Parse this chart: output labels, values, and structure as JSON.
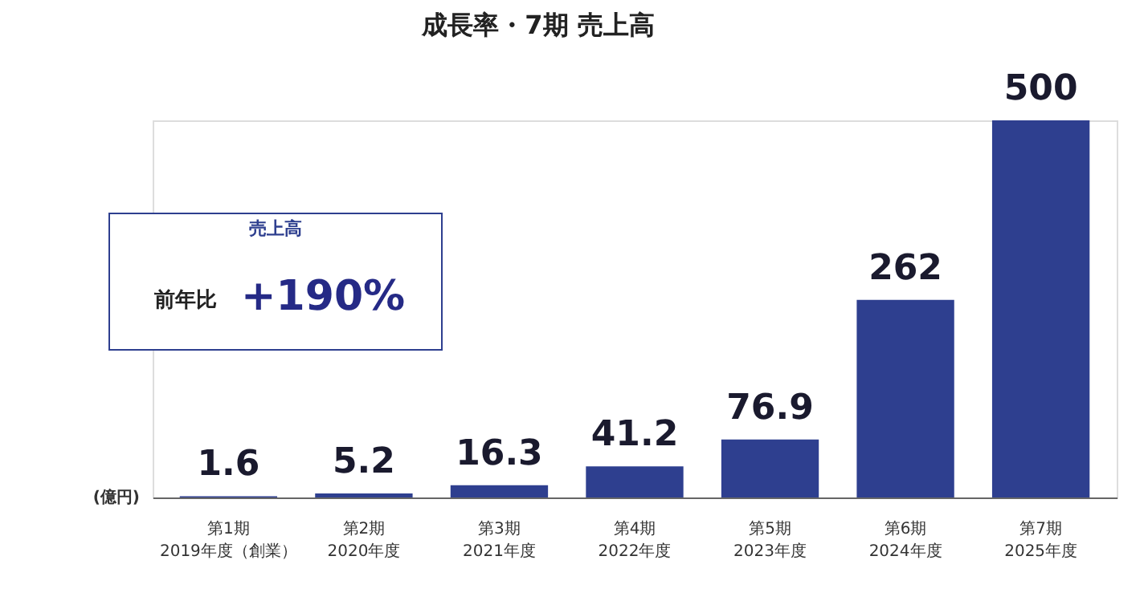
{
  "chart_data": {
    "type": "bar",
    "title": "成長率・7期 売上高",
    "ylabel": "(億円)",
    "categories": [
      "第1期\n2019年度（創業）",
      "第2期\n2020年度",
      "第3期\n2021年度",
      "第4期\n2022年度",
      "第5期\n2023年度",
      "第6期\n2024年度",
      "第7期\n2025年度"
    ],
    "series": [
      {
        "color": "#2e3f8f",
        "values": [
          1.6,
          5.2,
          16.3,
          41.2,
          76.9,
          262,
          500
        ]
      }
    ],
    "data_labels": true,
    "annotations": [
      "売上高",
      "前年比 +190%"
    ]
  }
}
